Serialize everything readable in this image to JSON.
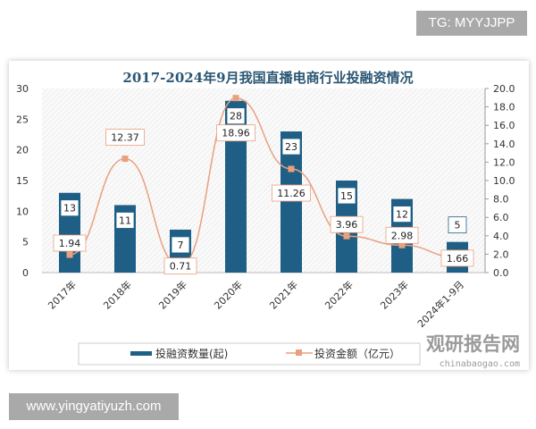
{
  "badge": "TG: MYYJJPP",
  "footer_url": "www.yingyatiyuzh.com",
  "watermark": {
    "name": "观研报告网",
    "url": "chinabaogao.com"
  },
  "chart_data": {
    "type": "bar+line",
    "title": "2017-2024年9月我国直播电商行业投融资情况",
    "categories": [
      "2017年",
      "2018年",
      "2019年",
      "2020年",
      "2021年",
      "2022年",
      "2023年",
      "2024年1-9月"
    ],
    "series": [
      {
        "name": "投融资数量(起)",
        "type": "bar",
        "axis": "left",
        "color": "#1f5f86",
        "values": [
          13,
          11,
          7,
          28,
          23,
          15,
          12,
          5
        ]
      },
      {
        "name": "投资金额（亿元）",
        "type": "line",
        "axis": "right",
        "color": "#e9a07f",
        "values": [
          1.94,
          12.37,
          0.71,
          18.96,
          11.26,
          3.96,
          2.98,
          1.66
        ]
      }
    ],
    "y_left": {
      "min": 0,
      "max": 30,
      "ticks": [
        "0",
        "5",
        "10",
        "15",
        "20",
        "25",
        "30"
      ]
    },
    "y_right": {
      "min": 0,
      "max": 20,
      "ticks": [
        "0.0",
        "2.0",
        "4.0",
        "6.0",
        "8.0",
        "10.0",
        "12.0",
        "14.0",
        "16.0",
        "18.0",
        "20.0"
      ]
    },
    "legend": "bottom",
    "grid": false
  }
}
